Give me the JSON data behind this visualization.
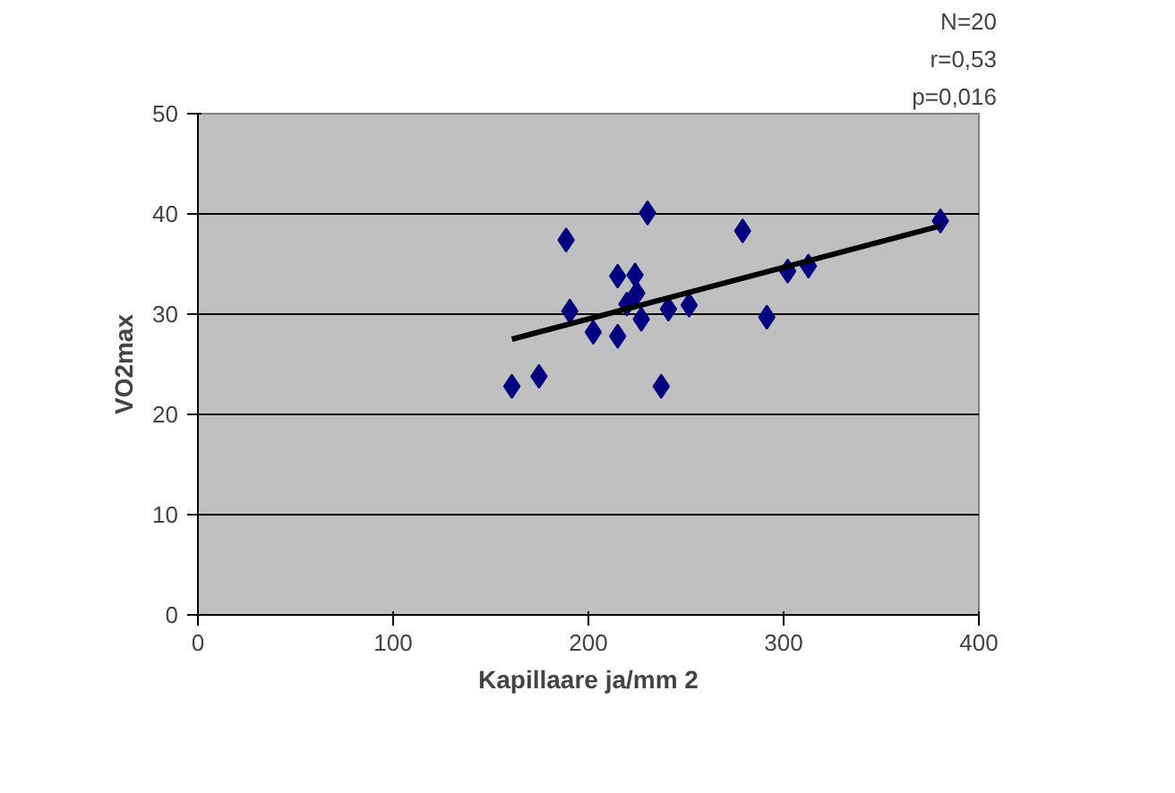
{
  "chart_data": {
    "type": "scatter",
    "xlabel": "Kapillaare ja/mm 2",
    "ylabel": "VO2max",
    "xlim": [
      0,
      400
    ],
    "ylim": [
      0,
      50
    ],
    "xticks": [
      0,
      100,
      200,
      300,
      400
    ],
    "yticks": [
      0,
      10,
      20,
      30,
      40,
      50
    ],
    "grid": "y",
    "marker": "diamond",
    "annotations": [
      "N=20",
      "r=0,53",
      "p=0,016"
    ],
    "series": [
      {
        "color": "#000080",
        "x": [
          160.8,
          174.7,
          188.6,
          190.5,
          202.5,
          215,
          215,
          223.9,
          224.8,
          219.7,
          227.1,
          230.3,
          237.3,
          241,
          251.6,
          279,
          291.4,
          302.1,
          312.7,
          380.3
        ],
        "values": [
          22.8,
          23.8,
          37.4,
          30.3,
          28.2,
          33.8,
          27.8,
          33.9,
          32.1,
          31.0,
          29.5,
          40.1,
          22.8,
          30.5,
          30.9,
          38.3,
          29.7,
          34.3,
          34.8,
          39.3
        ]
      },
      {
        "type": "line",
        "marker": "none",
        "color": "#000000",
        "x": [
          160.8,
          380.3
        ],
        "values": [
          27.5,
          38.8
        ]
      }
    ]
  }
}
